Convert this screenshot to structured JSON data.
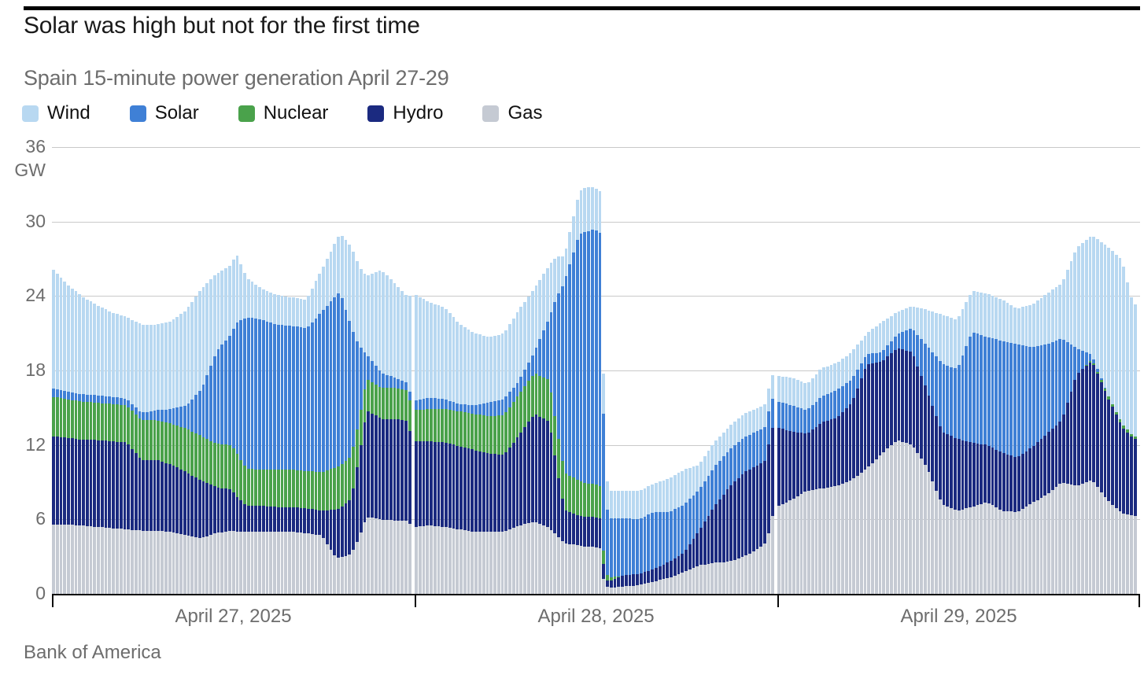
{
  "header": {
    "title": "Solar was high but not for the first time",
    "subtitle": "Spain 15-minute power generation April 27-29"
  },
  "source": "Bank of America",
  "chart_data": {
    "type": "bar",
    "variant": "stacked-time-series",
    "interval": "15-minute",
    "unit": "GW",
    "ylim": [
      0,
      36
    ],
    "y_ticks": [
      36,
      30,
      24,
      18,
      12,
      6,
      0
    ],
    "grid": "horizontal",
    "legend_position": "top",
    "legend": [
      {
        "label": "Wind",
        "color": "#b8d8f1"
      },
      {
        "label": "Solar",
        "color": "#3f80d6"
      },
      {
        "label": "Nuclear",
        "color": "#4aa24b"
      },
      {
        "label": "Hydro",
        "color": "#1b2a80"
      },
      {
        "label": "Gas",
        "color": "#c5cad3"
      }
    ],
    "x_labels": [
      "April 27, 2025",
      "April 28, 2025",
      "April 29, 2025"
    ],
    "days": 3,
    "bars_per_day": 96,
    "anchor_hours": [
      0,
      1,
      2,
      3,
      4,
      5,
      6,
      7,
      8,
      9,
      10,
      11,
      12,
      12.3,
      13,
      14,
      15,
      16,
      17,
      18,
      19,
      19.25,
      20,
      20.5,
      21,
      22,
      23,
      23.75,
      24,
      25,
      26,
      27,
      28,
      29,
      30,
      31,
      32,
      33,
      33.5,
      34,
      35,
      35.5,
      36,
      36.4,
      36.65,
      36.9,
      37,
      38,
      39,
      40,
      41,
      42,
      43,
      44,
      45,
      46,
      47,
      47.5,
      47.75,
      48,
      49,
      50,
      51,
      52,
      53,
      54,
      55,
      56,
      57,
      58,
      59,
      60,
      61,
      62,
      63,
      64,
      65,
      66,
      67,
      68,
      69,
      70,
      71,
      71.75
    ],
    "series": [
      {
        "name": "Gas",
        "color": "#c5cad3",
        "values": [
          5.6,
          5.6,
          5.5,
          5.4,
          5.3,
          5.2,
          5.1,
          5.1,
          5.0,
          4.7,
          4.5,
          4.9,
          5.1,
          5.0,
          5.0,
          5.0,
          5.0,
          5.0,
          4.9,
          4.7,
          2.9,
          2.9,
          3.2,
          4.5,
          6.2,
          6.0,
          5.9,
          5.9,
          5.4,
          5.5,
          5.4,
          5.2,
          5.0,
          5.0,
          5.0,
          5.5,
          5.8,
          5.3,
          4.7,
          4.1,
          3.9,
          3.8,
          3.8,
          3.7,
          0.9,
          0.5,
          0.5,
          0.6,
          0.7,
          1.0,
          1.3,
          1.8,
          2.3,
          2.5,
          2.6,
          3.0,
          3.7,
          4.2,
          5.5,
          7.0,
          7.6,
          8.3,
          8.5,
          8.7,
          9.2,
          10.1,
          11.3,
          12.4,
          12.0,
          10.2,
          7.2,
          6.7,
          7.0,
          7.4,
          6.7,
          6.6,
          7.3,
          8.0,
          9.0,
          8.7,
          9.2,
          7.6,
          6.5,
          6.3
        ]
      },
      {
        "name": "Hydro",
        "color": "#1b2a80",
        "values": [
          7.1,
          7.0,
          6.9,
          7.0,
          7.0,
          7.0,
          5.7,
          5.7,
          5.4,
          5.1,
          4.6,
          3.7,
          3.3,
          2.9,
          2.1,
          2.1,
          2.0,
          2.0,
          2.0,
          2.0,
          3.9,
          4.0,
          4.5,
          6.5,
          8.6,
          8.1,
          8.2,
          8.0,
          6.9,
          6.8,
          6.8,
          6.7,
          6.6,
          6.3,
          6.2,
          7.3,
          8.7,
          8.6,
          5.5,
          2.7,
          2.4,
          2.4,
          2.4,
          2.4,
          1.1,
          0.5,
          0.5,
          0.9,
          0.9,
          1.0,
          1.3,
          1.5,
          2.8,
          4.5,
          6.0,
          6.8,
          6.7,
          6.6,
          7.8,
          6.4,
          5.5,
          4.6,
          5.3,
          5.5,
          6.2,
          8.4,
          7.4,
          7.4,
          7.5,
          6.2,
          5.9,
          5.8,
          5.2,
          4.6,
          4.7,
          4.4,
          4.5,
          4.9,
          5.0,
          9.0,
          9.6,
          8.4,
          7.0,
          6.2
        ]
      },
      {
        "name": "Nuclear",
        "color": "#4aa24b",
        "values": [
          3.2,
          3.1,
          3.1,
          3.0,
          3.0,
          3.0,
          3.2,
          3.2,
          3.3,
          3.5,
          3.6,
          3.5,
          3.6,
          3.5,
          3.0,
          2.9,
          3.0,
          3.0,
          3.0,
          3.1,
          3.4,
          3.4,
          3.4,
          3.0,
          2.5,
          2.5,
          2.5,
          2.5,
          2.5,
          2.6,
          2.7,
          2.8,
          2.9,
          3.0,
          3.2,
          3.3,
          3.3,
          3.3,
          3.2,
          3.0,
          2.8,
          2.7,
          2.7,
          2.6,
          0.9,
          0.4,
          0.3,
          0,
          0,
          0,
          0,
          0,
          0,
          0,
          0,
          0,
          0,
          0,
          0,
          0,
          0,
          0,
          0,
          0,
          0,
          0,
          0,
          0,
          0,
          0,
          0,
          0,
          0,
          0,
          0,
          0,
          0,
          0,
          0,
          0,
          0.1,
          0.2,
          0.25,
          0.2
        ]
      },
      {
        "name": "Solar",
        "color": "#3f80d6",
        "values": [
          0.7,
          0.6,
          0.6,
          0.6,
          0.6,
          0.5,
          0.6,
          0.8,
          1.2,
          1.9,
          3.8,
          7.4,
          9.0,
          10.4,
          12.2,
          12.1,
          11.7,
          11.6,
          11.5,
          12.9,
          13.9,
          14.0,
          10.4,
          6.0,
          2.0,
          1.2,
          0.8,
          0.6,
          0.75,
          0.9,
          0.8,
          0.6,
          0.7,
          1.1,
          1.3,
          1.1,
          1.7,
          5.1,
          10.5,
          15.3,
          19.9,
          20.3,
          20.5,
          20.4,
          10.0,
          4.7,
          4.8,
          4.6,
          4.4,
          4.6,
          4.0,
          3.9,
          3.3,
          3.2,
          3.0,
          2.8,
          2.8,
          2.7,
          2.6,
          2.1,
          2.1,
          1.9,
          2.1,
          2.2,
          1.9,
          0.8,
          0.8,
          1.1,
          1.9,
          3.6,
          5.5,
          5.6,
          8.9,
          8.7,
          9.0,
          9.1,
          8.1,
          7.2,
          6.6,
          2.1,
          0.4,
          0,
          0,
          0
        ]
      },
      {
        "name": "Wind",
        "color": "#b8d8f1",
        "values": [
          9.7,
          8.7,
          7.9,
          7.3,
          6.8,
          6.6,
          7.1,
          6.9,
          7.1,
          7.7,
          8.1,
          6.3,
          5.5,
          5.7,
          3.2,
          2.5,
          2.4,
          2.3,
          2.3,
          3.4,
          4.4,
          4.7,
          6.5,
          6.4,
          6.3,
          8.3,
          7.5,
          6.9,
          8.6,
          7.7,
          7.4,
          6.5,
          5.8,
          5.3,
          5.3,
          5.7,
          5.1,
          4.2,
          3.3,
          2.1,
          3.4,
          3.6,
          3.4,
          3.3,
          3.2,
          2.2,
          2.2,
          2.2,
          2.3,
          2.3,
          2.7,
          2.8,
          2.0,
          2.0,
          1.9,
          1.9,
          1.8,
          1.9,
          1.8,
          2.1,
          2.2,
          2.1,
          2.3,
          2.2,
          2.2,
          1.7,
          2.4,
          1.8,
          1.8,
          2.9,
          3.9,
          4.0,
          3.3,
          3.5,
          3.3,
          2.9,
          3.4,
          4.1,
          4.4,
          8.1,
          9.6,
          11.8,
          13.2,
          10.6
        ]
      }
    ],
    "annotations": {
      "unit_label": "GW",
      "peak_total_gw": 32.8,
      "blackout_drop_to_gw": 8.3
    }
  }
}
